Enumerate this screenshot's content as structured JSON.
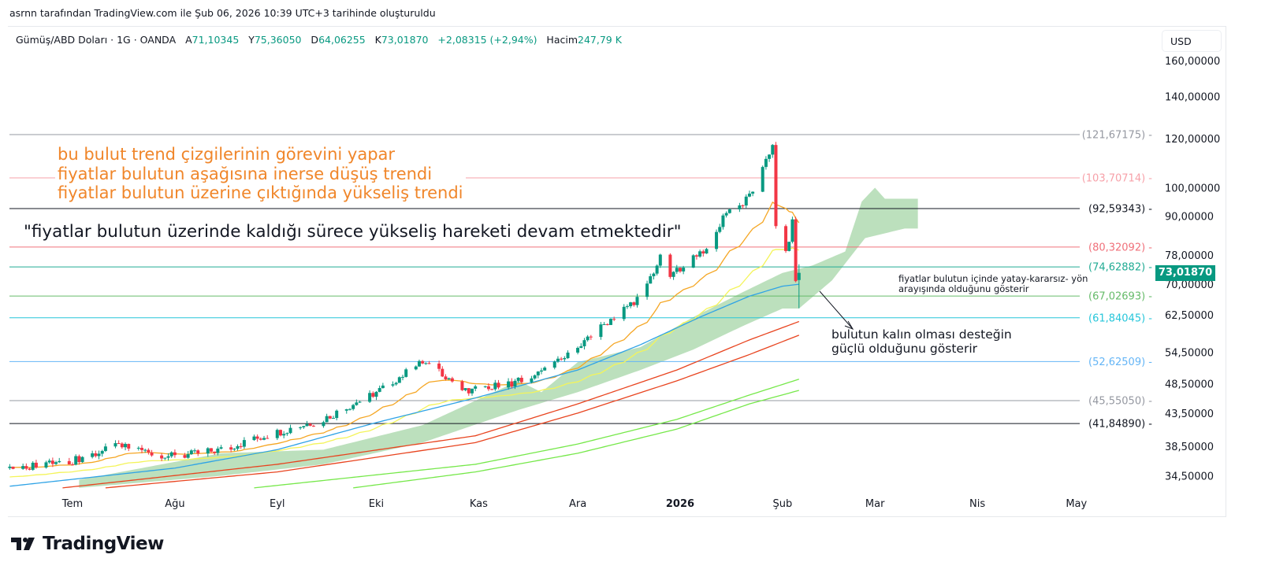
{
  "credit": "asrnn tarafından TradingView.com ile Şub 06, 2026 10:39 UTC+3 tarihinde oluşturuldu",
  "legend": {
    "symbol": "Gümüş/ABD Doları · 1G · OANDA",
    "open_label": "A",
    "open": "71,10345",
    "high_label": "Y",
    "high": "75,36050",
    "low_label": "D",
    "low": "64,06255",
    "close_label": "K",
    "close": "73,01870",
    "change": "+2,08315 (+2,94%)",
    "volume_label": "Hacim",
    "volume": "247,79 K"
  },
  "currency_button": "USD",
  "last_price_tag": "73,01870",
  "notes": {
    "orange": [
      "bu bulut trend çizgilerinin görevini yapar",
      "fiyatlar bulutun aşağısına inerse düşüş trendi",
      "fiyatlar bulutun üzerine çıktığında yükseliş trendi"
    ],
    "black": "\"fiyatlar bulutun üzerinde kaldığı sürece yükseliş hareketi devam etmektedir\"",
    "small": [
      "fiyatlar bulutun içinde yatay-kararsız- yön",
      "arayışında  olduğunu gösterir"
    ],
    "support": [
      "bulutun kalın olması desteğin",
      "güçlü olduğunu gösterir"
    ]
  },
  "logo_text": "TradingView",
  "colors": {
    "up": "#089981",
    "down": "#f23645",
    "cloud": "#a5d6a7",
    "orange_note": "#f0862a"
  },
  "chart_data": {
    "type": "line",
    "title": "Gümüş/ABD Doları · 1G · OANDA",
    "y_scale": "log",
    "ylim": [
      31,
      165
    ],
    "y_ticks": [
      "160,00000",
      "140,00000",
      "120,00000",
      "100,00000",
      "90,00000",
      "78,00000",
      "70,00000",
      "62,50000",
      "54,50000",
      "48,50000",
      "43,50000",
      "38,50000",
      "34,50000"
    ],
    "y_tick_values": [
      160,
      140,
      120,
      100,
      90,
      78,
      70,
      62.5,
      54.5,
      48.5,
      43.5,
      38.5,
      34.5
    ],
    "x_ticks": [
      {
        "label": "Tem",
        "day": 0
      },
      {
        "label": "Ağu",
        "day": 31
      },
      {
        "label": "Eyl",
        "day": 62
      },
      {
        "label": "Eki",
        "day": 92
      },
      {
        "label": "Kas",
        "day": 123
      },
      {
        "label": "Ara",
        "day": 153
      },
      {
        "label": "2026",
        "day": 184,
        "bold": true
      },
      {
        "label": "Şub",
        "day": 215
      },
      {
        "label": "Mar",
        "day": 243
      },
      {
        "label": "Nis",
        "day": 274
      },
      {
        "label": "May",
        "day": 304
      }
    ],
    "x_unit": "days since 2025-07-01",
    "close_path": [
      [
        -19,
        35.5
      ],
      [
        0,
        36.5
      ],
      [
        14,
        38.5
      ],
      [
        31,
        37
      ],
      [
        45,
        38
      ],
      [
        62,
        40.5
      ],
      [
        76,
        42.5
      ],
      [
        92,
        47
      ],
      [
        106,
        52.5
      ],
      [
        111,
        51
      ],
      [
        119,
        47
      ],
      [
        132,
        48.5
      ],
      [
        142,
        50.5
      ],
      [
        153,
        55
      ],
      [
        162,
        61
      ],
      [
        172,
        67
      ],
      [
        178,
        77
      ],
      [
        181,
        72
      ],
      [
        188,
        78
      ],
      [
        193,
        80
      ],
      [
        198,
        92
      ],
      [
        203,
        94
      ],
      [
        207,
        101
      ],
      [
        210,
        112
      ],
      [
        212,
        116
      ],
      [
        213,
        86
      ],
      [
        216,
        78
      ],
      [
        218,
        88
      ],
      [
        219,
        71.1
      ]
    ],
    "last_candle": {
      "day": 220,
      "open": 71.10345,
      "high": 75.3605,
      "low": 64.06255,
      "close": 73.0187
    },
    "horizontal_levels": [
      {
        "value": 121.67175,
        "label": "(121,67175)",
        "color": "#9598a1"
      },
      {
        "value": 103.70714,
        "label": "(103,70714)",
        "color": "#f7a1a9"
      },
      {
        "value": 92.59343,
        "label": "(92,59343)",
        "color": "#131722"
      },
      {
        "value": 80.32092,
        "label": "(80,32092)",
        "color": "#f0707a"
      },
      {
        "value": 74.62882,
        "label": "(74,62882)",
        "color": "#22ab94"
      },
      {
        "value": 67.02693,
        "label": "(67,02693)",
        "color": "#66bb6a"
      },
      {
        "value": 61.84045,
        "label": "(61,84045)",
        "color": "#26c6da"
      },
      {
        "value": 52.62509,
        "label": "(52,62509)",
        "color": "#64b5f6"
      },
      {
        "value": 45.5505,
        "label": "(45,55050)",
        "color": "#9598a1"
      },
      {
        "value": 41.8489,
        "label": "(41,84890)",
        "color": "#131722"
      }
    ],
    "ema": [
      {
        "name": "EMA 20",
        "period": 20,
        "seed": 35.6,
        "color": "#f5a623"
      },
      {
        "name": "EMA 50",
        "period": 50,
        "seed": 34.3,
        "color": "#f4f45a"
      }
    ],
    "lines": [
      {
        "name": "MA blue",
        "color": "#2fa3e6",
        "points": [
          [
            -19,
            33.2
          ],
          [
            31,
            35.5
          ],
          [
            62,
            38
          ],
          [
            92,
            42
          ],
          [
            122,
            46
          ],
          [
            153,
            51
          ],
          [
            172,
            56
          ],
          [
            190,
            62
          ],
          [
            205,
            67
          ],
          [
            215,
            69.5
          ],
          [
            220,
            70
          ]
        ]
      },
      {
        "name": "MA red 1",
        "color": "#e8441f",
        "points": [
          [
            -3,
            33
          ],
          [
            62,
            36
          ],
          [
            122,
            40
          ],
          [
            153,
            45
          ],
          [
            183,
            51
          ],
          [
            205,
            57
          ],
          [
            220,
            61
          ]
        ]
      },
      {
        "name": "MA red 2",
        "color": "#e8441f",
        "points": [
          [
            10,
            33
          ],
          [
            62,
            35
          ],
          [
            122,
            39
          ],
          [
            153,
            43.5
          ],
          [
            183,
            49
          ],
          [
            205,
            54
          ],
          [
            220,
            58
          ]
        ]
      },
      {
        "name": "MA green 1",
        "color": "#76e84a",
        "points": [
          [
            55,
            33
          ],
          [
            122,
            36
          ],
          [
            153,
            38.8
          ],
          [
            183,
            42.5
          ],
          [
            205,
            46.5
          ],
          [
            220,
            49.3
          ]
        ]
      },
      {
        "name": "MA green 2",
        "color": "#76e84a",
        "points": [
          [
            85,
            33
          ],
          [
            122,
            35
          ],
          [
            153,
            37.5
          ],
          [
            183,
            41
          ],
          [
            205,
            45
          ],
          [
            220,
            47.3
          ]
        ]
      }
    ],
    "cloud": {
      "upper": [
        [
          2,
          34
        ],
        [
          45,
          37.5
        ],
        [
          76,
          38
        ],
        [
          106,
          41.6
        ],
        [
          135,
          49
        ],
        [
          142,
          47
        ],
        [
          153,
          52.5
        ],
        [
          172,
          55.5
        ],
        [
          188,
          62
        ],
        [
          203,
          68
        ],
        [
          215,
          73
        ],
        [
          224,
          75
        ],
        [
          234,
          79
        ],
        [
          239,
          95
        ],
        [
          243,
          100
        ],
        [
          246,
          96
        ],
        [
          252,
          96
        ],
        [
          256,
          96
        ]
      ],
      "lower": [
        [
          2,
          33
        ],
        [
          45,
          34.5
        ],
        [
          76,
          36
        ],
        [
          106,
          39
        ],
        [
          135,
          44
        ],
        [
          153,
          47
        ],
        [
          172,
          51
        ],
        [
          188,
          55
        ],
        [
          203,
          60
        ],
        [
          215,
          64
        ],
        [
          220,
          64
        ],
        [
          230,
          71
        ],
        [
          240,
          83
        ],
        [
          252,
          86
        ],
        [
          256,
          86
        ]
      ]
    }
  }
}
